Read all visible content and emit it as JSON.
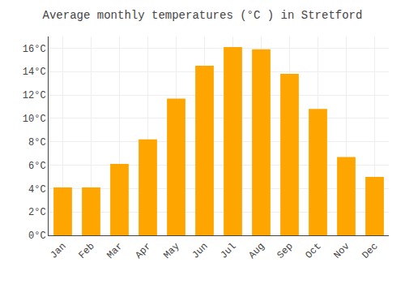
{
  "chart_data": {
    "type": "bar",
    "title": "Average monthly temperatures (°C ) in Stretford",
    "categories": [
      "Jan",
      "Feb",
      "Mar",
      "Apr",
      "May",
      "Jun",
      "Jul",
      "Aug",
      "Sep",
      "Oct",
      "Nov",
      "Dec"
    ],
    "values": [
      4.1,
      4.1,
      6.1,
      8.2,
      11.7,
      14.5,
      16.1,
      15.9,
      13.8,
      10.8,
      6.7,
      5.0
    ],
    "color": "#FFA500",
    "ylim": [
      0,
      17
    ],
    "yticks": [
      {
        "value": 0,
        "label": "0°C"
      },
      {
        "value": 2,
        "label": "2°C"
      },
      {
        "value": 4,
        "label": "4°C"
      },
      {
        "value": 6,
        "label": "6°C"
      },
      {
        "value": 8,
        "label": "8°C"
      },
      {
        "value": 10,
        "label": "10°C"
      },
      {
        "value": 12,
        "label": "12°C"
      },
      {
        "value": 14,
        "label": "14°C"
      },
      {
        "value": 16,
        "label": "16°C"
      }
    ],
    "grid": true
  }
}
